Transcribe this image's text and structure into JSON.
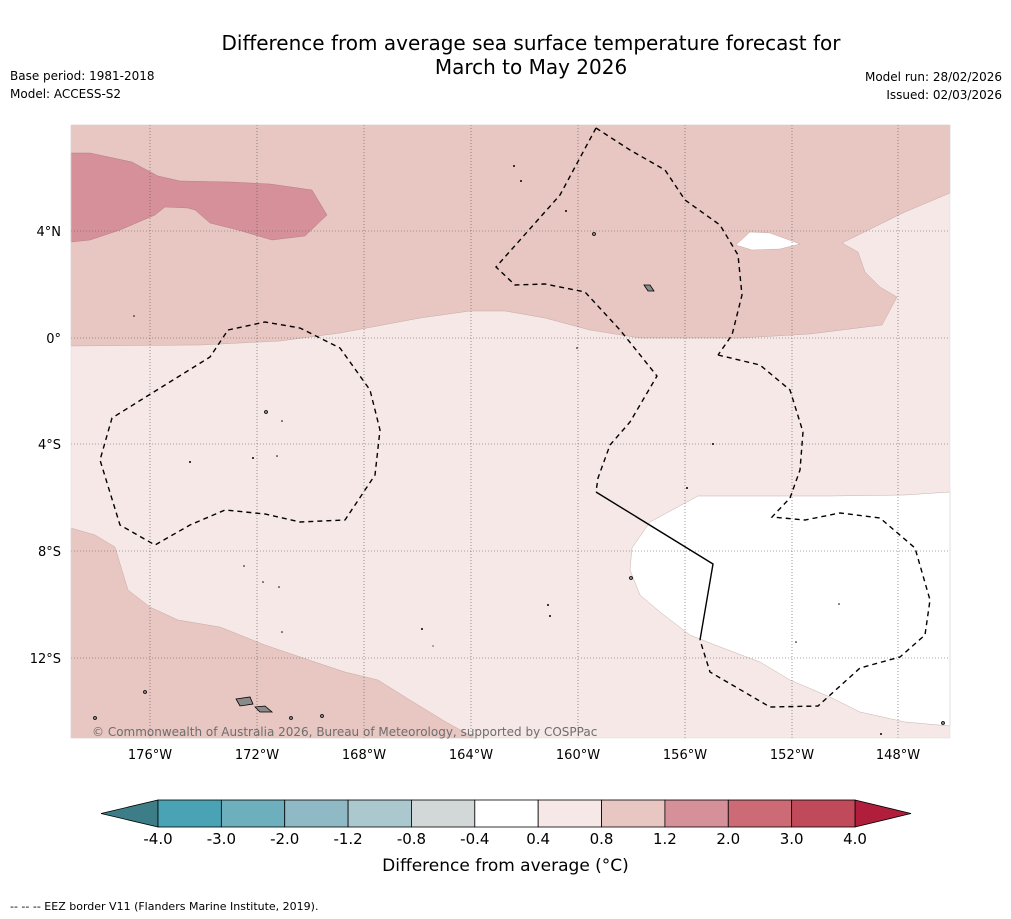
{
  "header": {
    "title_line1": "Difference from average sea surface temperature forecast for",
    "title_line2": "March to May 2026",
    "base_period": "Base period: 1981-2018",
    "model": "Model: ACCESS-S2",
    "model_run": "Model run: 28/02/2026",
    "issued": "Issued: 02/03/2026"
  },
  "map": {
    "copyright": "© Commonwealth of Australia 2026, Bureau of Meteorology, supported by COSPPac",
    "lat_labels": [
      "4°N",
      "0°",
      "4°S",
      "8°S",
      "12°S"
    ],
    "lon_labels": [
      "176°W",
      "172°W",
      "168°W",
      "164°W",
      "160°W",
      "156°W",
      "152°W",
      "148°W"
    ],
    "fill_colors": {
      "range_0_4_to_0_8": "#f5e8e6",
      "range_0_8_to_1_2": "#e8c6c1",
      "range_1_2_to_2_0": "#d5909a",
      "neutral": "#ffffff",
      "land": "#9a9a9a"
    }
  },
  "colorbar": {
    "ticks": [
      "-4.0",
      "-3.0",
      "-2.0",
      "-1.2",
      "-0.8",
      "-0.4",
      "0.4",
      "0.8",
      "1.2",
      "2.0",
      "3.0",
      "4.0"
    ],
    "colors": [
      "#4aa3b4",
      "#6eafbe",
      "#8fbac5",
      "#abc8ce",
      "#d2d7d8",
      "#ffffff",
      "#f5e8e6",
      "#e8c6c1",
      "#d5909a",
      "#cc6b76",
      "#c0495a"
    ],
    "low_extend_color": "#3c7d87",
    "high_extend_color": "#b01e3c",
    "title": "Difference from average (°C)"
  },
  "footer": {
    "legend_text": "--  --  -- EEZ border V11 (Flanders Marine Institute, 2019)."
  }
}
